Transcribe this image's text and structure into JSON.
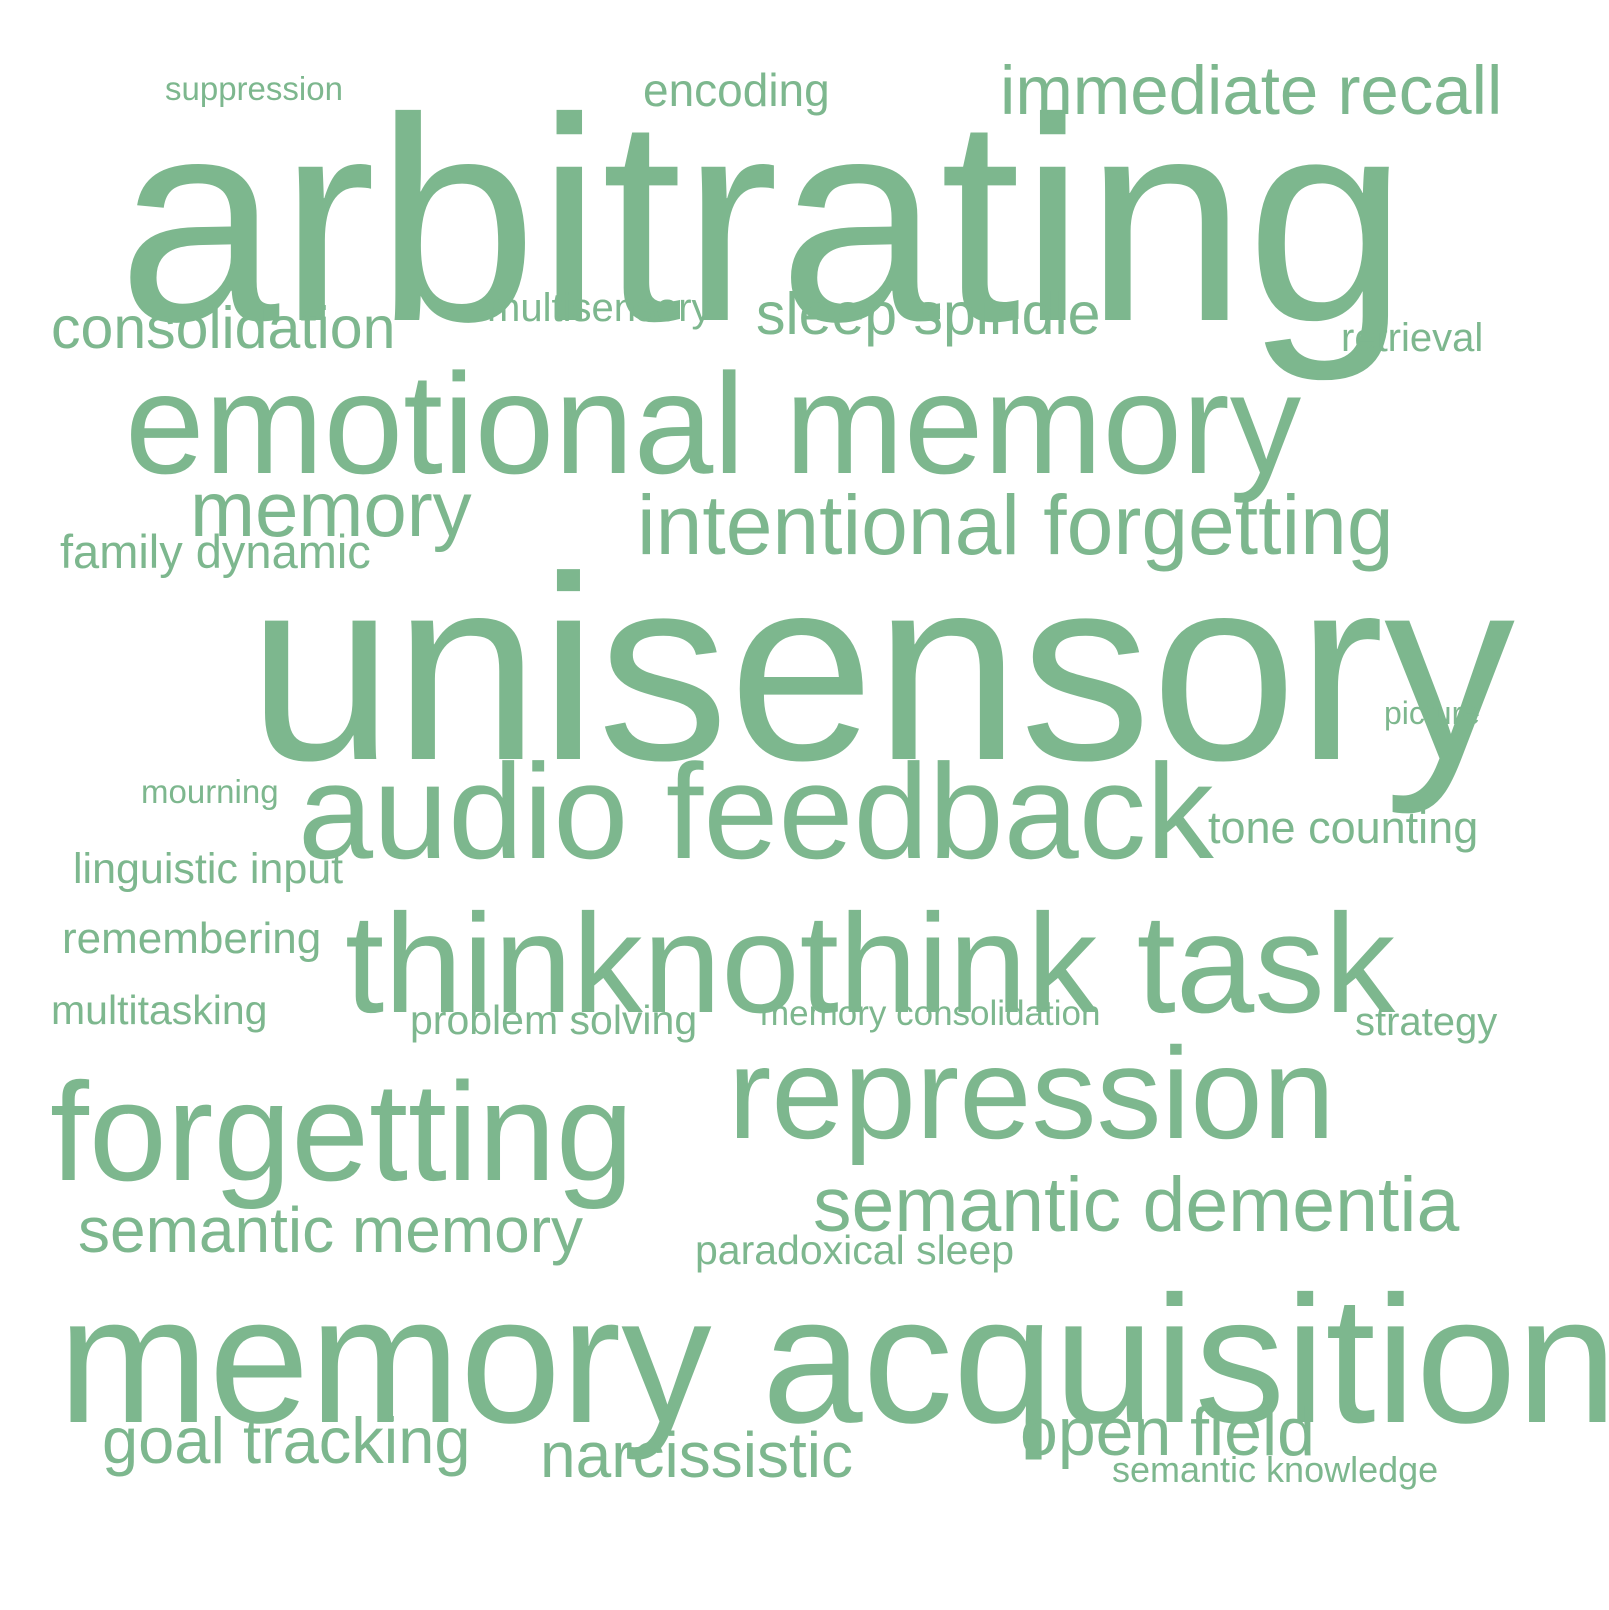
{
  "color": "#7db78e",
  "words": [
    {
      "text": "arbitrating"
    },
    {
      "text": "unisensory"
    },
    {
      "text": "memory acquisition"
    },
    {
      "text": "emotional memory"
    },
    {
      "text": "thinknothink task"
    },
    {
      "text": "audio feedback"
    },
    {
      "text": "forgetting"
    },
    {
      "text": "repression"
    },
    {
      "text": "intentional forgetting"
    },
    {
      "text": "immediate recall"
    },
    {
      "text": "semantic dementia"
    },
    {
      "text": "memory"
    },
    {
      "text": "semantic memory"
    },
    {
      "text": "sleep spindle"
    },
    {
      "text": "consolidation"
    },
    {
      "text": "goal tracking"
    },
    {
      "text": "narcissistic"
    },
    {
      "text": "open field"
    },
    {
      "text": "encoding"
    },
    {
      "text": "family dynamic"
    },
    {
      "text": "tone counting"
    },
    {
      "text": "linguistic input"
    },
    {
      "text": "remembering"
    },
    {
      "text": "problem solving"
    },
    {
      "text": "multitasking"
    },
    {
      "text": "paradoxical sleep"
    },
    {
      "text": "retrieval"
    },
    {
      "text": "multisensory"
    },
    {
      "text": "strategy"
    },
    {
      "text": "semantic knowledge"
    },
    {
      "text": "memory consolidation"
    },
    {
      "text": "suppression"
    },
    {
      "text": "mourning"
    },
    {
      "text": "picture"
    }
  ]
}
